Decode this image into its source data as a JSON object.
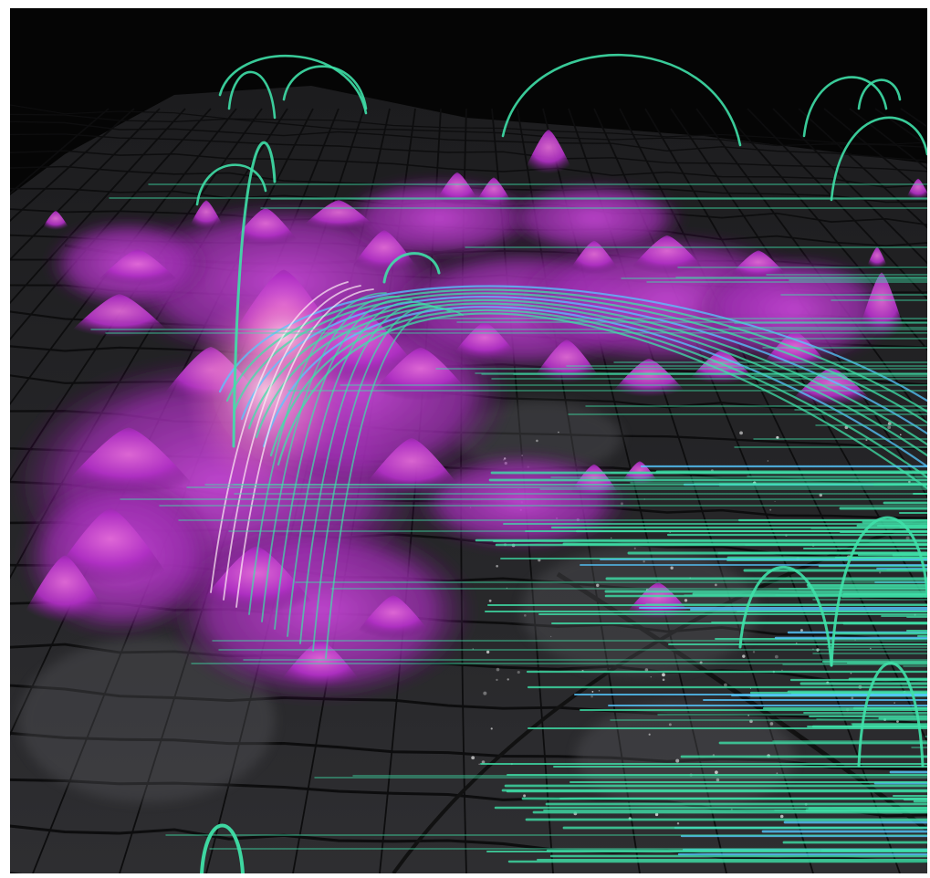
{
  "scene": {
    "kind": "3D geographic flow visualization over city street map",
    "colors": {
      "background": "#050505",
      "ground": "#2a2a2c",
      "streets": "#0d0d0e",
      "density_surface": "#b02fc4",
      "density_highlight": "#f2a0d8",
      "flow_arcs": "#3fe0a8",
      "flow_arcs_alt": "#55c8ff"
    },
    "layers": [
      {
        "name": "street-grid-ground"
      },
      {
        "name": "density-surface"
      },
      {
        "name": "flow-arcs"
      }
    ]
  }
}
